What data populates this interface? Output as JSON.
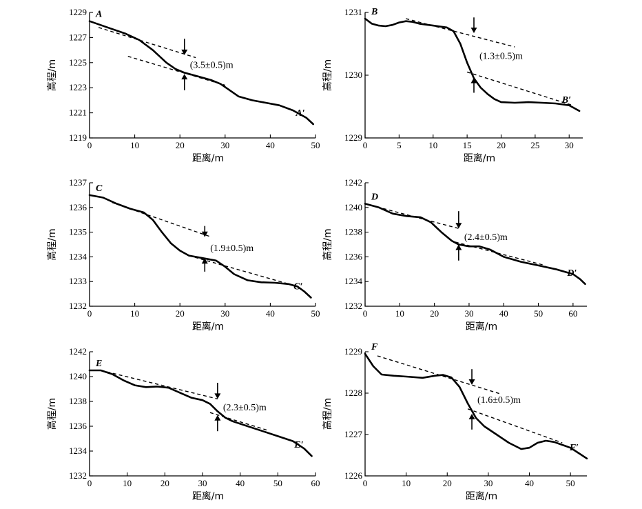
{
  "axis_labels": {
    "x": "距离/m",
    "y": "高程/m"
  },
  "chart_data": [
    {
      "type": "line",
      "id": "A",
      "start_label": "A",
      "end_label": "A′",
      "offset_label": "(3.5±0.5)m",
      "xlim": [
        0,
        50
      ],
      "ylim": [
        1219,
        1229
      ],
      "xticks": [
        0,
        10,
        20,
        30,
        40,
        50
      ],
      "yticks": [
        1219,
        1221,
        1223,
        1225,
        1227,
        1229
      ],
      "profile": [
        [
          0,
          1228.3
        ],
        [
          4,
          1227.8
        ],
        [
          8,
          1227.3
        ],
        [
          11,
          1226.8
        ],
        [
          14,
          1226.0
        ],
        [
          17,
          1225.0
        ],
        [
          19,
          1224.5
        ],
        [
          21,
          1224.2
        ],
        [
          24,
          1223.9
        ],
        [
          27,
          1223.6
        ],
        [
          29,
          1223.3
        ],
        [
          31,
          1222.8
        ],
        [
          33,
          1222.3
        ],
        [
          36,
          1222.0
        ],
        [
          39,
          1221.8
        ],
        [
          42,
          1221.6
        ],
        [
          45,
          1221.2
        ],
        [
          48,
          1220.6
        ],
        [
          49.5,
          1220.1
        ]
      ],
      "fit_upper": [
        [
          2,
          1227.8
        ],
        [
          23.5,
          1225.4
        ]
      ],
      "fit_lower": [
        [
          8.5,
          1225.5
        ],
        [
          30,
          1223.2
        ]
      ],
      "arrow_x": 21,
      "arrow_down_from": 1226.9,
      "arrow_down_to": 1225.6,
      "arrow_up_from": 1222.8,
      "arrow_up_to": 1224.1
    },
    {
      "type": "line",
      "id": "B",
      "start_label": "B",
      "end_label": "B′",
      "offset_label": "(1.3±0.5)m",
      "xlim": [
        0,
        32
      ],
      "ylim": [
        1229,
        1231
      ],
      "xticks": [
        0,
        5,
        10,
        15,
        20,
        25,
        30
      ],
      "yticks": [
        1229,
        1230,
        1231
      ],
      "profile": [
        [
          0,
          1230.9
        ],
        [
          1,
          1230.82
        ],
        [
          2,
          1230.79
        ],
        [
          3,
          1230.78
        ],
        [
          4,
          1230.8
        ],
        [
          5,
          1230.84
        ],
        [
          6,
          1230.86
        ],
        [
          7,
          1230.85
        ],
        [
          8,
          1230.82
        ],
        [
          10,
          1230.79
        ],
        [
          12,
          1230.76
        ],
        [
          13,
          1230.7
        ],
        [
          14,
          1230.5
        ],
        [
          15,
          1230.2
        ],
        [
          16,
          1229.95
        ],
        [
          17,
          1229.8
        ],
        [
          18,
          1229.7
        ],
        [
          19,
          1229.62
        ],
        [
          20,
          1229.57
        ],
        [
          22,
          1229.56
        ],
        [
          24,
          1229.57
        ],
        [
          26,
          1229.56
        ],
        [
          28,
          1229.55
        ],
        [
          30,
          1229.52
        ],
        [
          31.5,
          1229.43
        ]
      ],
      "fit_upper": [
        [
          6,
          1230.9
        ],
        [
          22,
          1230.45
        ]
      ],
      "fit_lower": [
        [
          15,
          1230.05
        ],
        [
          30.5,
          1229.52
        ]
      ],
      "arrow_x": 16,
      "arrow_down_from": 1230.92,
      "arrow_down_to": 1230.67,
      "arrow_up_from": 1229.72,
      "arrow_up_to": 1229.96
    },
    {
      "type": "line",
      "id": "C",
      "start_label": "C",
      "end_label": "C′",
      "offset_label": "(1.9±0.5)m",
      "xlim": [
        0,
        50
      ],
      "ylim": [
        1232,
        1237
      ],
      "xticks": [
        0,
        10,
        20,
        30,
        40,
        50
      ],
      "yticks": [
        1232,
        1233,
        1234,
        1235,
        1236,
        1237
      ],
      "profile": [
        [
          0,
          1236.5
        ],
        [
          3,
          1236.4
        ],
        [
          6,
          1236.15
        ],
        [
          9,
          1235.95
        ],
        [
          12,
          1235.8
        ],
        [
          14,
          1235.5
        ],
        [
          16,
          1235.0
        ],
        [
          18,
          1234.55
        ],
        [
          20,
          1234.25
        ],
        [
          22,
          1234.05
        ],
        [
          25,
          1233.95
        ],
        [
          28,
          1233.85
        ],
        [
          30,
          1233.6
        ],
        [
          32,
          1233.3
        ],
        [
          35,
          1233.05
        ],
        [
          38,
          1232.97
        ],
        [
          41,
          1232.95
        ],
        [
          44,
          1232.9
        ],
        [
          46,
          1232.8
        ],
        [
          47.5,
          1232.6
        ],
        [
          49,
          1232.35
        ]
      ],
      "fit_upper": [
        [
          5,
          1236.2
        ],
        [
          27,
          1234.8
        ]
      ],
      "fit_lower": [
        [
          22,
          1234.05
        ],
        [
          46,
          1232.8
        ]
      ],
      "arrow_x": 25.5,
      "arrow_down_from": 1235.25,
      "arrow_down_to": 1234.8,
      "arrow_up_from": 1233.4,
      "arrow_up_to": 1233.95
    },
    {
      "type": "line",
      "id": "D",
      "start_label": "D",
      "end_label": "D′",
      "offset_label": "(2.4±0.5)m",
      "xlim": [
        0,
        64
      ],
      "ylim": [
        1232,
        1242
      ],
      "xticks": [
        0,
        10,
        20,
        30,
        40,
        50,
        60
      ],
      "yticks": [
        1232,
        1234,
        1236,
        1238,
        1240,
        1242
      ],
      "profile": [
        [
          0,
          1240.3
        ],
        [
          4,
          1240.0
        ],
        [
          8,
          1239.5
        ],
        [
          12,
          1239.3
        ],
        [
          16,
          1239.2
        ],
        [
          19,
          1238.8
        ],
        [
          22,
          1238.0
        ],
        [
          25,
          1237.3
        ],
        [
          27,
          1237.0
        ],
        [
          30,
          1236.85
        ],
        [
          33,
          1236.85
        ],
        [
          36,
          1236.6
        ],
        [
          40,
          1236.0
        ],
        [
          45,
          1235.6
        ],
        [
          50,
          1235.3
        ],
        [
          55,
          1235.0
        ],
        [
          60,
          1234.6
        ],
        [
          62,
          1234.2
        ],
        [
          63.5,
          1233.8
        ]
      ],
      "fit_upper": [
        [
          0,
          1240.3
        ],
        [
          27,
          1238.3
        ]
      ],
      "fit_lower": [
        [
          26,
          1237.2
        ],
        [
          52,
          1235.3
        ]
      ],
      "arrow_x": 27,
      "arrow_down_from": 1239.7,
      "arrow_down_to": 1238.3,
      "arrow_up_from": 1235.7,
      "arrow_up_to": 1237.0
    },
    {
      "type": "line",
      "id": "E",
      "start_label": "E",
      "end_label": "E′",
      "offset_label": "(2.3±0.5)m",
      "xlim": [
        0,
        60
      ],
      "ylim": [
        1232,
        1242
      ],
      "xticks": [
        0,
        10,
        20,
        30,
        40,
        50,
        60
      ],
      "yticks": [
        1232,
        1234,
        1236,
        1238,
        1240,
        1242
      ],
      "profile": [
        [
          0,
          1240.5
        ],
        [
          3,
          1240.5
        ],
        [
          6,
          1240.2
        ],
        [
          9,
          1239.7
        ],
        [
          12,
          1239.3
        ],
        [
          15,
          1239.15
        ],
        [
          18,
          1239.2
        ],
        [
          21,
          1239.1
        ],
        [
          24,
          1238.7
        ],
        [
          27,
          1238.3
        ],
        [
          30,
          1238.1
        ],
        [
          32,
          1237.8
        ],
        [
          34,
          1237.2
        ],
        [
          36,
          1236.7
        ],
        [
          38,
          1236.4
        ],
        [
          42,
          1236.0
        ],
        [
          46,
          1235.6
        ],
        [
          50,
          1235.2
        ],
        [
          54,
          1234.8
        ],
        [
          57,
          1234.2
        ],
        [
          59,
          1233.6
        ]
      ],
      "fit_upper": [
        [
          3,
          1240.5
        ],
        [
          34,
          1238.2
        ]
      ],
      "fit_lower": [
        [
          32,
          1237.1
        ],
        [
          47,
          1235.7
        ]
      ],
      "arrow_x": 34,
      "arrow_down_from": 1239.5,
      "arrow_down_to": 1238.2,
      "arrow_up_from": 1235.6,
      "arrow_up_to": 1236.9
    },
    {
      "type": "line",
      "id": "F",
      "start_label": "F",
      "end_label": "F′",
      "offset_label": "(1.6±0.5)m",
      "xlim": [
        0,
        54
      ],
      "ylim": [
        1226,
        1229
      ],
      "xticks": [
        0,
        10,
        20,
        30,
        40,
        50
      ],
      "yticks": [
        1226,
        1227,
        1228,
        1229
      ],
      "profile": [
        [
          0,
          1228.95
        ],
        [
          2,
          1228.65
        ],
        [
          4,
          1228.45
        ],
        [
          7,
          1228.42
        ],
        [
          10,
          1228.4
        ],
        [
          14,
          1228.37
        ],
        [
          17,
          1228.42
        ],
        [
          19,
          1228.44
        ],
        [
          21,
          1228.38
        ],
        [
          23,
          1228.15
        ],
        [
          25,
          1227.75
        ],
        [
          27,
          1227.4
        ],
        [
          29,
          1227.2
        ],
        [
          32,
          1227.0
        ],
        [
          35,
          1226.8
        ],
        [
          38,
          1226.65
        ],
        [
          40,
          1226.68
        ],
        [
          42,
          1226.8
        ],
        [
          44,
          1226.85
        ],
        [
          46,
          1226.82
        ],
        [
          48,
          1226.75
        ],
        [
          50,
          1226.68
        ],
        [
          52,
          1226.55
        ],
        [
          54,
          1226.42
        ]
      ],
      "fit_upper": [
        [
          3,
          1228.9
        ],
        [
          33,
          1227.98
        ]
      ],
      "fit_lower": [
        [
          25,
          1227.62
        ],
        [
          48,
          1226.8
        ]
      ],
      "arrow_x": 26,
      "arrow_down_from": 1228.58,
      "arrow_down_to": 1228.2,
      "arrow_up_from": 1227.12,
      "arrow_up_to": 1227.5
    }
  ]
}
